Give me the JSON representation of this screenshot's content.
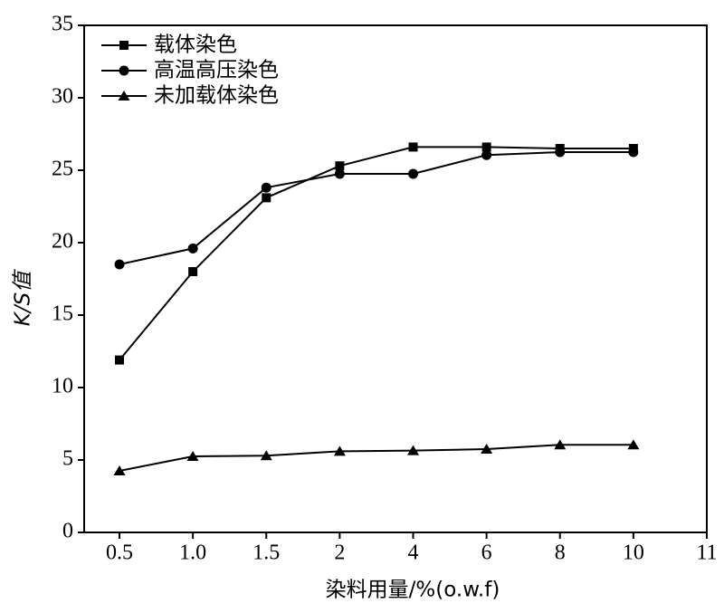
{
  "chart_data": {
    "type": "line",
    "x_label": "染料用量/%(o.w.f)",
    "y_label": "K/S值",
    "categories": [
      "0.5",
      "1.0",
      "1.5",
      "2",
      "4",
      "6",
      "8",
      "10",
      "11"
    ],
    "series": [
      {
        "name": "载体染色",
        "color": "#000000",
        "marker": "square",
        "values": [
          11.9,
          18.0,
          23.1,
          25.3,
          26.6,
          26.6,
          26.5,
          26.5,
          null
        ]
      },
      {
        "name": "高温高压染色",
        "color": "#000000",
        "marker": "circle",
        "values": [
          18.5,
          19.6,
          23.8,
          24.75,
          24.75,
          26.05,
          26.25,
          26.25,
          null
        ]
      },
      {
        "name": "未加载体染色",
        "color": "#000000",
        "marker": "triangle",
        "values": [
          4.25,
          5.25,
          5.3,
          5.6,
          5.65,
          5.75,
          6.05,
          6.05,
          null
        ]
      }
    ],
    "ylim": [
      0,
      35
    ],
    "yticks": [
      0,
      5,
      10,
      15,
      20,
      25,
      30,
      35
    ],
    "legend": "upper left"
  }
}
